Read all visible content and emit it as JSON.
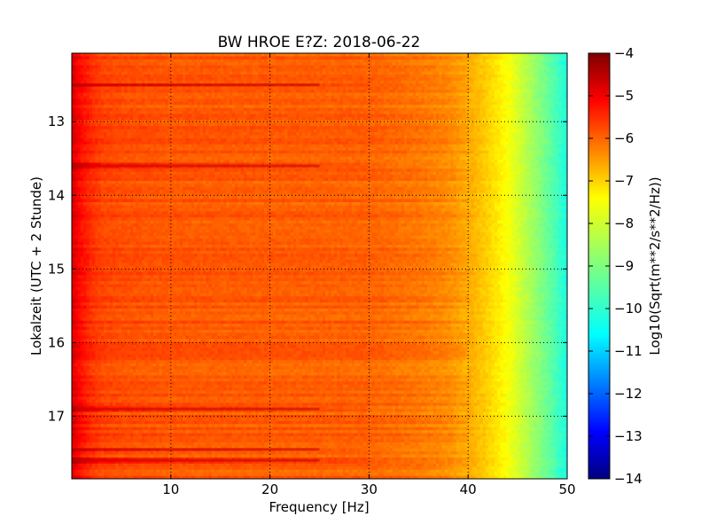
{
  "chart_data": {
    "type": "heatmap",
    "title": "BW HROE E?Z: 2018-06-22",
    "xlabel": "Frequency [Hz]",
    "ylabel": "Lokalzeit (UTC + 2 Stunde)",
    "xlim": [
      0,
      50
    ],
    "ylim": [
      12.07,
      17.85
    ],
    "y_inverted": true,
    "x_ticks": [
      "10",
      "20",
      "30",
      "40",
      "50"
    ],
    "x_tick_values": [
      10,
      20,
      30,
      40,
      50
    ],
    "y_ticks": [
      "13",
      "14",
      "15",
      "16",
      "17"
    ],
    "y_tick_values": [
      13,
      14,
      15,
      16,
      17
    ],
    "grid": true,
    "colormap": "jet",
    "colorbar": {
      "label": "Log10(Sqrt(m**2/s**2/Hz))",
      "range": [
        -14,
        -4
      ],
      "ticks": [
        "−4",
        "−5",
        "−6",
        "−7",
        "−8",
        "−9",
        "−10",
        "−11",
        "−12",
        "−13",
        "−14"
      ],
      "tick_values": [
        -4,
        -5,
        -6,
        -7,
        -8,
        -9,
        -10,
        -11,
        -12,
        -13,
        -14
      ]
    },
    "spectrum_profile": {
      "frequency_hz": [
        0,
        1,
        2,
        3,
        5,
        10,
        20,
        30,
        35,
        38,
        40,
        42,
        44,
        46,
        48,
        50
      ],
      "log10_amplitude": [
        -4.9,
        -5.4,
        -5.7,
        -5.9,
        -6.0,
        -6.1,
        -6.15,
        -6.2,
        -6.4,
        -6.6,
        -6.9,
        -7.3,
        -7.8,
        -8.5,
        -9.2,
        -10.0
      ]
    },
    "strong_bands_hours": [
      12.5,
      13.6,
      16.9,
      17.45,
      17.6
    ]
  }
}
